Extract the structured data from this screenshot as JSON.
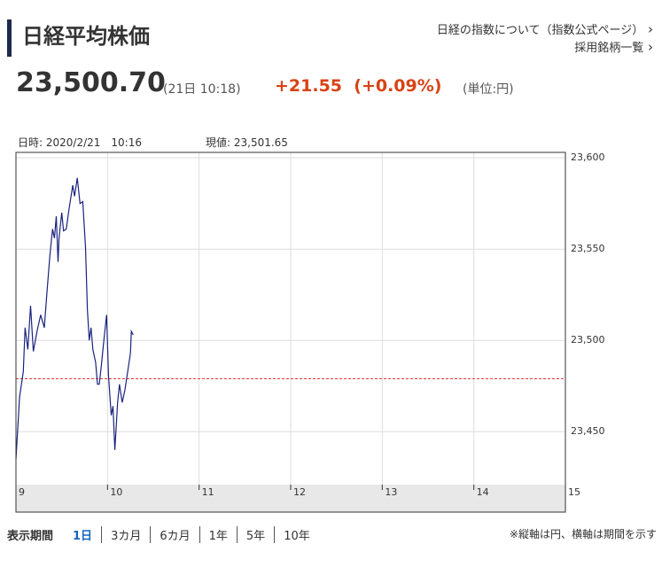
{
  "header": {
    "title": "日経平均株価",
    "links": [
      "日経の指数について（指数公式ページ）",
      "採用銘柄一覧"
    ],
    "price": "23,500.70",
    "time": "(21日 10:18)",
    "change": "+21.55",
    "change_pct": "(+0.09%)",
    "unit": "(単位:円)"
  },
  "chart_info": {
    "datetime": "日時: 2020/2/21　10:16",
    "current": "現値: 23,501.65"
  },
  "chart_data": {
    "type": "line",
    "color": "#1a237e",
    "x": [
      9.0,
      9.04,
      9.08,
      9.1,
      9.13,
      9.16,
      9.19,
      9.23,
      9.27,
      9.31,
      9.34,
      9.37,
      9.4,
      9.42,
      9.44,
      9.46,
      9.47,
      9.5,
      9.52,
      9.55,
      9.58,
      9.62,
      9.64,
      9.67,
      9.7,
      9.73,
      9.76,
      9.78,
      9.8,
      9.82,
      9.84,
      9.87,
      9.89,
      9.91,
      9.93,
      9.96,
      9.99,
      10.01,
      10.04,
      10.06,
      10.08,
      10.11,
      10.13,
      10.16,
      10.19,
      10.22,
      10.25,
      10.26,
      10.28
    ],
    "values": [
      23435,
      23469,
      23483,
      23507,
      23495,
      23519,
      23494,
      23505,
      23514,
      23507,
      23527,
      23546,
      23561,
      23556,
      23568,
      23543,
      23556,
      23570,
      23560,
      23561,
      23572,
      23585,
      23579,
      23589,
      23575,
      23576,
      23551,
      23517,
      23500,
      23507,
      23495,
      23488,
      23476,
      23476,
      23485,
      23500,
      23514,
      23481,
      23459,
      23464,
      23440,
      23466,
      23476,
      23466,
      23473,
      23483,
      23493,
      23505,
      23503
    ],
    "xlim": [
      9,
      15
    ],
    "xticks": [
      9,
      10,
      11,
      12,
      13,
      14,
      15
    ],
    "ylim": [
      23421,
      23603
    ],
    "yticks": [
      {
        "value": 23450,
        "label": "23,450"
      },
      {
        "value": 23500,
        "label": "23,500"
      },
      {
        "value": 23550,
        "label": "23,550"
      },
      {
        "value": 23600,
        "label": "23,600"
      }
    ],
    "grid": true,
    "ref_line": 23479,
    "ref_color": "#e53935"
  },
  "footer": {
    "label": "表示期間",
    "periods": [
      "1日",
      "3カ月",
      "6カ月",
      "1年",
      "5年",
      "10年"
    ],
    "note": "※縦軸は円、横軸は期間を示す"
  }
}
